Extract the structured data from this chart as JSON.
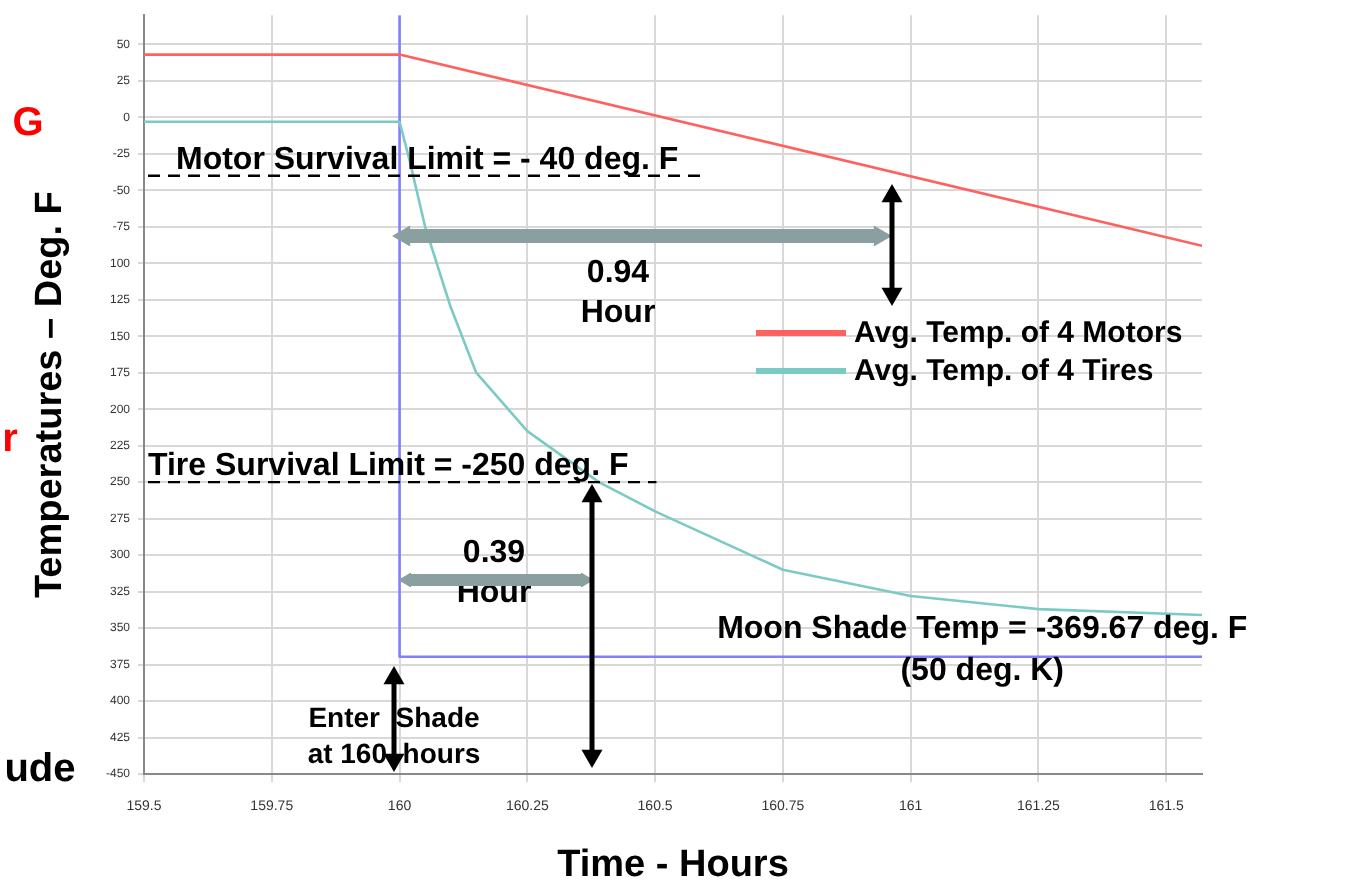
{
  "chart_data": {
    "type": "line",
    "xlabel": "Time - Hours",
    "ylabel": "Temperatures – Deg. F",
    "xlim": [
      159.5,
      161.57
    ],
    "xticks": [
      159.5,
      159.75,
      160,
      160.25,
      160.5,
      160.75,
      161,
      161.25,
      161.5
    ],
    "ylim": [
      -450,
      70
    ],
    "yticks": [
      50,
      25,
      0,
      -25,
      -50,
      -75,
      {
        "value": -100,
        "label": "100"
      },
      {
        "value": -125,
        "label": "125"
      },
      {
        "value": -150,
        "label": "150"
      },
      {
        "value": -175,
        "label": "175"
      },
      {
        "value": -200,
        "label": "200"
      },
      {
        "value": -225,
        "label": "225"
      },
      {
        "value": -250,
        "label": "250"
      },
      {
        "value": -275,
        "label": "275"
      },
      {
        "value": -300,
        "label": "300"
      },
      {
        "value": -325,
        "label": "325"
      },
      {
        "value": -350,
        "label": "350"
      },
      {
        "value": -375,
        "label": "375"
      },
      {
        "value": -400,
        "label": "400"
      },
      {
        "value": -425,
        "label": "425"
      },
      -450
    ],
    "grid": true,
    "legend": "right",
    "marker": "none",
    "line_style": "solid",
    "series": [
      {
        "name": "Avg. Temp. of 4 Motors",
        "color": "#ff6060",
        "x": [
          159.5,
          160,
          161.57
        ],
        "values": [
          43,
          43,
          -88
        ]
      },
      {
        "name": "Avg. Temp. of 4 Tires",
        "color": "#7ccac4",
        "x": [
          159.5,
          160,
          160.02,
          160.05,
          160.1,
          160.15,
          160.25,
          160.39,
          160.5,
          160.75,
          161,
          161.25,
          161.57
        ],
        "values": [
          -3,
          -3,
          -30,
          -75,
          -130,
          -175,
          -215,
          -250,
          -270,
          -310,
          -328,
          -337,
          -341
        ]
      },
      {
        "type": "step",
        "color": "#8080ff",
        "x": [
          160,
          160,
          161.57
        ],
        "values": [
          70,
          -369.67,
          -369.67
        ]
      }
    ],
    "ref_lines": [
      {
        "axis": "y",
        "value": -40,
        "label": "Motor Survival Limit = - 40 deg. F",
        "color": "#000000",
        "line_style": "dashed"
      },
      {
        "axis": "y",
        "value": -250,
        "label": "Tire Survival Limit = -250 deg. F",
        "color": "#000000",
        "line_style": "dashed"
      }
    ],
    "annotations": [
      "0.94\nHour",
      "0.39\nHour",
      {
        "text": "Moon Shade Temp = -369.67 deg. F\n(50 deg. K)",
        "x": 161.14,
        "y": -365
      },
      "Enter  Shade\nat 160  hours",
      "G",
      "r",
      "ude"
    ]
  }
}
